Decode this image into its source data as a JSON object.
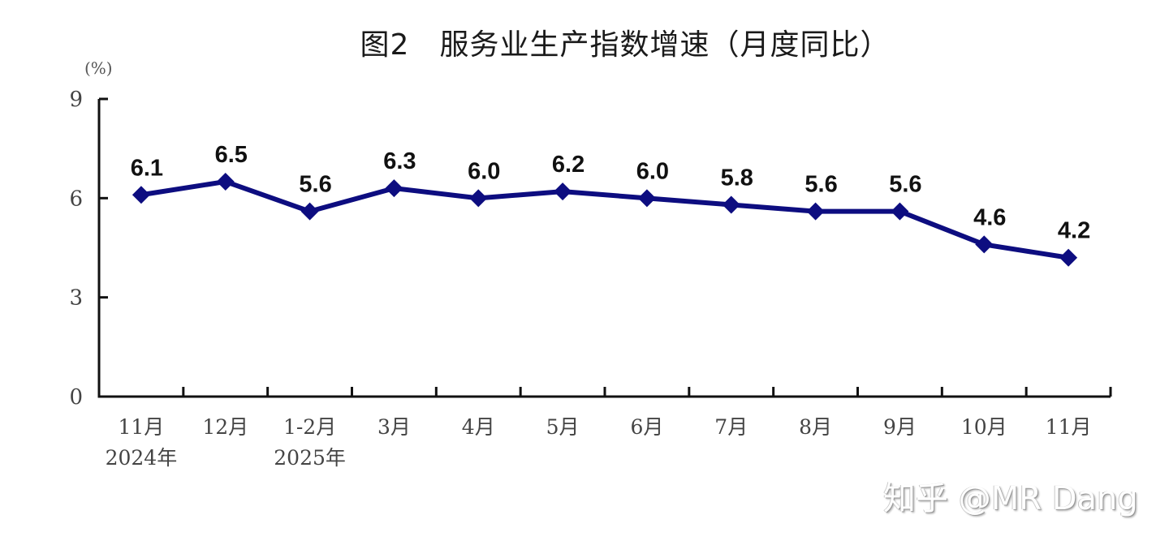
{
  "chart_data": {
    "type": "line",
    "title": "图2　服务业生产指数增速（月度同比）",
    "ylabel": "(%)",
    "xlabel": "",
    "ylim": [
      0,
      9
    ],
    "yticks": [
      0,
      3,
      6,
      9
    ],
    "grid": false,
    "legend": null,
    "categories": [
      "11月\n2024年",
      "12月",
      "1-2月\n2025年",
      "3月",
      "4月",
      "5月",
      "6月",
      "7月",
      "8月",
      "9月",
      "10月",
      "11月"
    ],
    "category_lines": [
      [
        "11月",
        "2024年"
      ],
      [
        "12月"
      ],
      [
        "1-2月",
        "2025年"
      ],
      [
        "3月"
      ],
      [
        "4月"
      ],
      [
        "5月"
      ],
      [
        "6月"
      ],
      [
        "7月"
      ],
      [
        "8月"
      ],
      [
        "9月"
      ],
      [
        "10月"
      ],
      [
        "11月"
      ]
    ],
    "series": [
      {
        "name": "服务业生产指数增速",
        "values": [
          6.1,
          6.5,
          5.6,
          6.3,
          6.0,
          6.2,
          6.0,
          5.8,
          5.6,
          5.6,
          4.6,
          4.2
        ],
        "labels": [
          "6.1",
          "6.5",
          "5.6",
          "6.3",
          "6.0",
          "6.2",
          "6.0",
          "5.8",
          "5.6",
          "5.6",
          "4.6",
          "4.2"
        ],
        "color": "#0d0d80",
        "marker": "diamond"
      }
    ]
  },
  "header": {
    "title": "图2　服务业生产指数增速（月度同比）",
    "unit": "(%)"
  },
  "watermark": "知乎 @MR Dang",
  "colors": {
    "line": "#0d0d80",
    "axis": "#111111",
    "tick_text": "#444444"
  }
}
